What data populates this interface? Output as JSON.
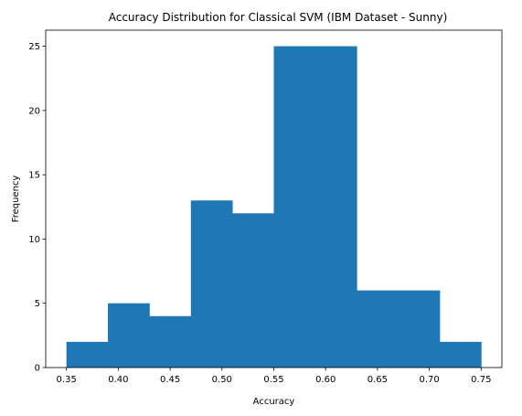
{
  "chart_data": {
    "type": "bar",
    "title": "Accuracy Distribution for Classical SVM (IBM Dataset - Sunny)",
    "xlabel": "Accuracy",
    "ylabel": "Frequency",
    "xlim": [
      0.33,
      0.77
    ],
    "ylim": [
      0,
      26.25
    ],
    "x_ticks": [
      "0.35",
      "0.40",
      "0.45",
      "0.50",
      "0.55",
      "0.60",
      "0.65",
      "0.70",
      "0.75"
    ],
    "y_ticks": [
      "0",
      "5",
      "10",
      "15",
      "20",
      "25"
    ],
    "bins": [
      {
        "start": 0.35,
        "end": 0.39,
        "count": 2
      },
      {
        "start": 0.39,
        "end": 0.43,
        "count": 5
      },
      {
        "start": 0.43,
        "end": 0.47,
        "count": 4
      },
      {
        "start": 0.47,
        "end": 0.51,
        "count": 13
      },
      {
        "start": 0.51,
        "end": 0.55,
        "count": 12
      },
      {
        "start": 0.55,
        "end": 0.59,
        "count": 25
      },
      {
        "start": 0.59,
        "end": 0.63,
        "count": 25
      },
      {
        "start": 0.63,
        "end": 0.67,
        "count": 6
      },
      {
        "start": 0.67,
        "end": 0.71,
        "count": 6
      },
      {
        "start": 0.71,
        "end": 0.75,
        "count": 2
      }
    ],
    "bar_color": "#1f77b4",
    "grid": false,
    "legend": false
  }
}
